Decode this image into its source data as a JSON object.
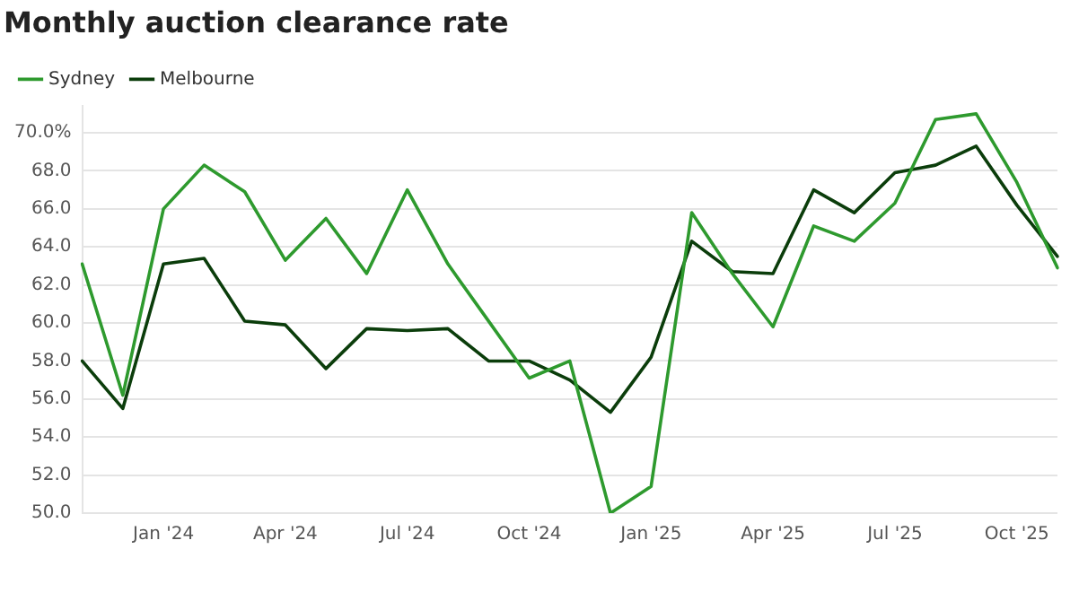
{
  "chart_data": {
    "type": "line",
    "title": "Monthly auction clearance rate",
    "categories": [
      null,
      null,
      "Jan '24",
      null,
      null,
      "Apr '24",
      null,
      null,
      "Jul '24",
      null,
      null,
      "Oct '24",
      null,
      null,
      "Jan '25",
      null,
      null,
      "Apr '25",
      null,
      null,
      "Jul '25",
      null,
      null,
      "Oct '25",
      null
    ],
    "series": [
      {
        "name": "Sydney",
        "color": "#2e9a2e",
        "values": [
          63.1,
          56.2,
          66.0,
          68.3,
          66.9,
          63.3,
          65.5,
          62.6,
          67.0,
          63.1,
          60.1,
          57.1,
          58.0,
          50.0,
          51.4,
          65.8,
          62.6,
          59.8,
          65.1,
          64.3,
          66.3,
          70.7,
          71.0,
          67.4,
          62.9
        ]
      },
      {
        "name": "Melbourne",
        "color": "#0b3d0b",
        "values": [
          58.0,
          55.5,
          63.1,
          63.4,
          60.1,
          59.9,
          57.6,
          59.7,
          59.6,
          59.7,
          58.0,
          58.0,
          57.0,
          55.3,
          58.2,
          64.3,
          62.7,
          62.6,
          67.0,
          65.8,
          67.9,
          68.3,
          69.3,
          66.2,
          63.5
        ]
      }
    ],
    "ylim": [
      50,
      71.4
    ],
    "yticks": [
      {
        "value": 50,
        "label": "50.0"
      },
      {
        "value": 52,
        "label": "52.0"
      },
      {
        "value": 54,
        "label": "54.0"
      },
      {
        "value": 56,
        "label": "56.0"
      },
      {
        "value": 58,
        "label": "58.0"
      },
      {
        "value": 60,
        "label": "60.0"
      },
      {
        "value": 62,
        "label": "62.0"
      },
      {
        "value": 64,
        "label": "64.0"
      },
      {
        "value": 66,
        "label": "66.0"
      },
      {
        "value": 68,
        "label": "68.0"
      },
      {
        "value": 70,
        "label": "70.0%"
      }
    ],
    "grid": "y",
    "legend": "top left",
    "marker": "none",
    "line_style": "solid"
  }
}
